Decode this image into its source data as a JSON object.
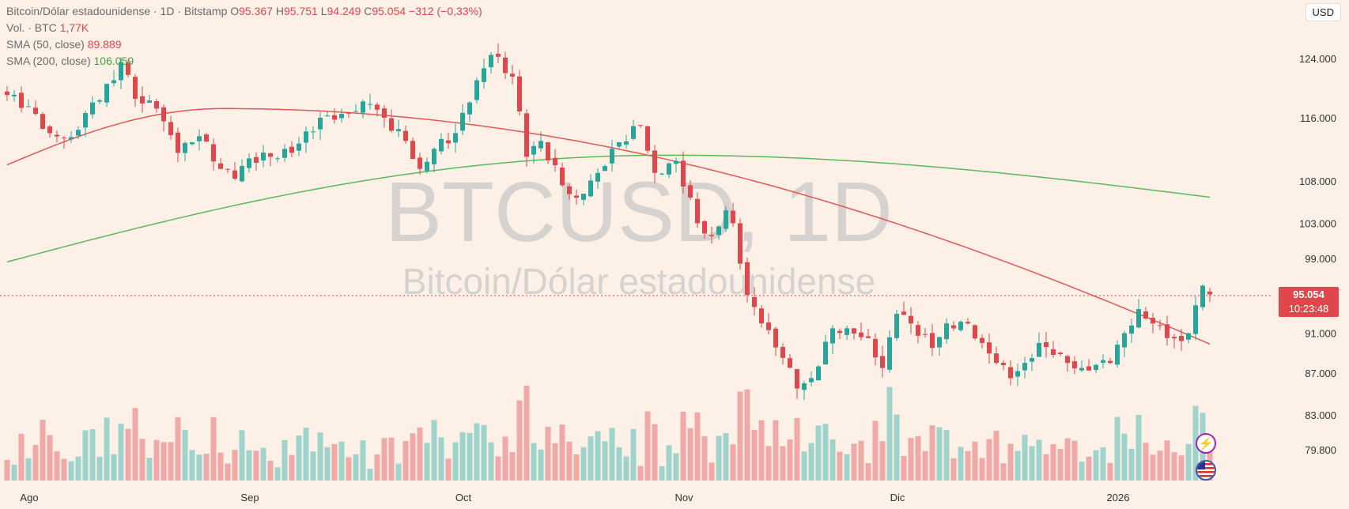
{
  "header": {
    "title": "Bitcoin/Dólar estadounidense · 1D · Bitstamp",
    "o_label": "O",
    "o_value": "95.367",
    "h_label": "H",
    "h_value": "95.751",
    "l_label": "L",
    "l_value": "94.249",
    "c_label": "C",
    "c_value": "95.054",
    "change": "−312 (−0,33%)"
  },
  "volume": {
    "label": "Vol. · BTC",
    "value": "1,77K"
  },
  "sma50": {
    "label": "SMA (50, close)",
    "value": "89.889"
  },
  "sma200": {
    "label": "SMA (200, close)",
    "value": "106.059"
  },
  "currency_button": "USD",
  "watermark": {
    "symbol": "BTCUSD, 1D",
    "name": "Bitcoin/Dólar estadounidense"
  },
  "price_tag": {
    "price": "95.054",
    "countdown": "10:23:48"
  },
  "colors": {
    "up": "#26a69a",
    "down": "#e0474c",
    "vol_up": "#9fd4cc",
    "vol_down": "#f0a9a6",
    "sma50": "#e25756",
    "sma200": "#5cb85c",
    "background": "#fdf0e6"
  },
  "icons": [
    "lightning-icon",
    "us-flag-icon"
  ],
  "chart_data": {
    "type": "candlestick",
    "y_scale": "log",
    "y_ticks": [
      124000,
      116000,
      108000,
      103000,
      99000,
      91000,
      87000,
      83000,
      79800
    ],
    "y_tick_labels": [
      "124.000",
      "116.000",
      "108.000",
      "103.000",
      "99.000",
      "91.000",
      "87.000",
      "83.000",
      "79.800"
    ],
    "x_ticks": [
      {
        "label": "Ago",
        "index": 2
      },
      {
        "label": "Sep",
        "index": 33
      },
      {
        "label": "Oct",
        "index": 63
      },
      {
        "label": "Nov",
        "index": 94
      },
      {
        "label": "Dic",
        "index": 124
      },
      {
        "label": "2026",
        "index": 155
      }
    ],
    "close_anchors": [
      [
        0,
        119000
      ],
      [
        3,
        117500
      ],
      [
        6,
        114000
      ],
      [
        9,
        113500
      ],
      [
        12,
        118000
      ],
      [
        15,
        121000
      ],
      [
        16,
        123500
      ],
      [
        18,
        118500
      ],
      [
        21,
        117200
      ],
      [
        24,
        111500
      ],
      [
        27,
        113600
      ],
      [
        30,
        109500
      ],
      [
        32,
        108300
      ],
      [
        34,
        110800
      ],
      [
        37,
        111000
      ],
      [
        40,
        111500
      ],
      [
        44,
        116000
      ],
      [
        47,
        116500
      ],
      [
        51,
        117800
      ],
      [
        53,
        116000
      ],
      [
        56,
        113000
      ],
      [
        58,
        109500
      ],
      [
        60,
        112000
      ],
      [
        63,
        114000
      ],
      [
        66,
        121000
      ],
      [
        68,
        124500
      ],
      [
        71,
        121500
      ],
      [
        73,
        111000
      ],
      [
        75,
        113000
      ],
      [
        78,
        107500
      ],
      [
        80,
        106000
      ],
      [
        83,
        109000
      ],
      [
        85,
        112000
      ],
      [
        89,
        115000
      ],
      [
        91,
        109000
      ],
      [
        94,
        110500
      ],
      [
        97,
        103000
      ],
      [
        99,
        101500
      ],
      [
        101,
        104500
      ],
      [
        102,
        103000
      ],
      [
        104,
        95000
      ],
      [
        106,
        92000
      ],
      [
        109,
        88500
      ],
      [
        111,
        85500
      ],
      [
        113,
        86500
      ],
      [
        116,
        91500
      ],
      [
        118,
        91500
      ],
      [
        121,
        90500
      ],
      [
        123,
        87500
      ],
      [
        125,
        93000
      ],
      [
        127,
        92000
      ],
      [
        130,
        89500
      ],
      [
        132,
        92000
      ],
      [
        135,
        92000
      ],
      [
        137,
        90000
      ],
      [
        139,
        88000
      ],
      [
        141,
        86500
      ],
      [
        143,
        88000
      ],
      [
        145,
        90000
      ],
      [
        147,
        88800
      ],
      [
        149,
        88000
      ],
      [
        151,
        87500
      ],
      [
        153,
        87800
      ],
      [
        155,
        88000
      ],
      [
        157,
        91000
      ],
      [
        159,
        93500
      ],
      [
        161,
        92000
      ],
      [
        163,
        90500
      ],
      [
        165,
        90200
      ],
      [
        166,
        91000
      ],
      [
        168,
        96000
      ],
      [
        169,
        95054
      ]
    ],
    "sma50": {
      "x_start_index": 0,
      "y_start": 110000,
      "y_peak": 117200,
      "y_end": 89889
    },
    "sma200": {
      "x_start_index": 0,
      "y_start": 98600,
      "y_peak": 111200,
      "y_end": 106059
    },
    "last": {
      "open": 95367,
      "high": 95751,
      "low": 94249,
      "close": 95054
    }
  }
}
